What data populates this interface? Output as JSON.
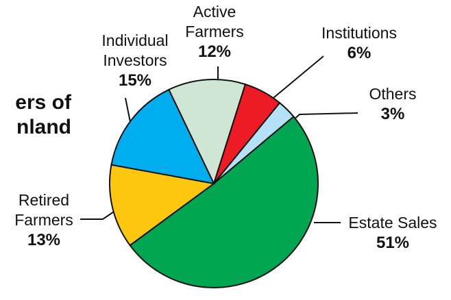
{
  "chart_data": {
    "type": "pie",
    "title_lines": [
      "ers of",
      "nland"
    ],
    "categories": [
      "Active Farmers",
      "Institutions",
      "Others",
      "Estate Sales",
      "Retired Farmers",
      "Individual Investors"
    ],
    "values": [
      12,
      6,
      3,
      51,
      13,
      15
    ],
    "value_labels": [
      "12%",
      "6%",
      "3%",
      "51%",
      "13%",
      "15%"
    ],
    "colors": [
      "#cfe6d5",
      "#ed1c24",
      "#b5e1f6",
      "#00a651",
      "#fdc70f",
      "#00aeef"
    ]
  }
}
